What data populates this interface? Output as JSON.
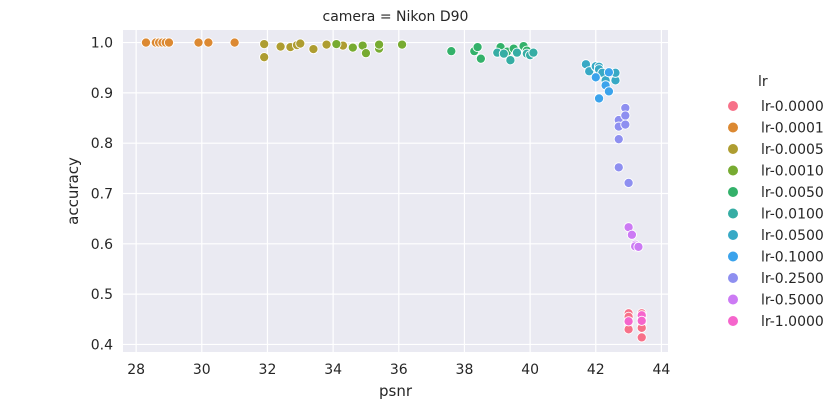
{
  "chart_data": {
    "type": "scatter",
    "title": "camera = Nikon D90",
    "xlabel": "psnr",
    "ylabel": "accuracy",
    "xlim": [
      27.6,
      44.2
    ],
    "ylim": [
      0.385,
      1.025
    ],
    "xticks": [
      28,
      30,
      32,
      34,
      36,
      38,
      40,
      42,
      44
    ],
    "yticks": [
      0.4,
      0.5,
      0.6,
      0.7,
      0.8,
      0.9,
      1.0
    ],
    "grid": true,
    "legend_title": "lr",
    "legend_position": "right",
    "series": [
      {
        "name": "lr-0.0000",
        "color": "#f77189",
        "points": [
          [
            43.0,
            0.462
          ],
          [
            43.0,
            0.455
          ],
          [
            43.0,
            0.443
          ],
          [
            43.0,
            0.43
          ],
          [
            43.4,
            0.462
          ],
          [
            43.4,
            0.452
          ],
          [
            43.4,
            0.443
          ],
          [
            43.4,
            0.433
          ],
          [
            43.4,
            0.414
          ]
        ]
      },
      {
        "name": "lr-0.0001",
        "color": "#dc8932",
        "points": [
          [
            28.3,
            1.0
          ],
          [
            28.6,
            1.0
          ],
          [
            28.7,
            1.0
          ],
          [
            28.8,
            1.0
          ],
          [
            28.9,
            1.0
          ],
          [
            29.0,
            1.0
          ],
          [
            29.9,
            1.0
          ],
          [
            30.2,
            1.0
          ],
          [
            31.0,
            1.0
          ]
        ]
      },
      {
        "name": "lr-0.0005",
        "color": "#ae9d31",
        "points": [
          [
            31.9,
            0.997
          ],
          [
            31.9,
            0.971
          ],
          [
            32.4,
            0.992
          ],
          [
            32.7,
            0.991
          ],
          [
            32.9,
            0.995
          ],
          [
            33.0,
            0.998
          ],
          [
            33.4,
            0.987
          ],
          [
            33.8,
            0.996
          ],
          [
            34.3,
            0.994
          ]
        ]
      },
      {
        "name": "lr-0.0010",
        "color": "#77ab31",
        "points": [
          [
            34.1,
            0.997
          ],
          [
            34.6,
            0.99
          ],
          [
            34.9,
            0.994
          ],
          [
            35.0,
            0.979
          ],
          [
            35.4,
            0.988
          ],
          [
            35.4,
            0.996
          ],
          [
            36.1,
            0.996
          ]
        ]
      },
      {
        "name": "lr-0.0050",
        "color": "#33b16a",
        "points": [
          [
            37.6,
            0.983
          ],
          [
            38.3,
            0.983
          ],
          [
            38.4,
            0.991
          ],
          [
            38.5,
            0.968
          ],
          [
            39.1,
            0.991
          ],
          [
            39.3,
            0.982
          ],
          [
            39.5,
            0.988
          ],
          [
            39.8,
            0.993
          ],
          [
            39.9,
            0.984
          ]
        ]
      },
      {
        "name": "lr-0.0100",
        "color": "#36ada4",
        "points": [
          [
            39.0,
            0.98
          ],
          [
            39.2,
            0.978
          ],
          [
            39.4,
            0.965
          ],
          [
            39.6,
            0.98
          ],
          [
            39.9,
            0.978
          ],
          [
            40.0,
            0.975
          ],
          [
            40.1,
            0.98
          ]
        ]
      },
      {
        "name": "lr-0.0500",
        "color": "#38a9c5",
        "points": [
          [
            41.7,
            0.957
          ],
          [
            41.8,
            0.943
          ],
          [
            42.0,
            0.952
          ],
          [
            42.0,
            0.953
          ],
          [
            42.1,
            0.952
          ],
          [
            42.1,
            0.947
          ],
          [
            42.2,
            0.94
          ],
          [
            42.3,
            0.925
          ],
          [
            42.6,
            0.925
          ],
          [
            42.6,
            0.94
          ]
        ]
      },
      {
        "name": "lr-0.1000",
        "color": "#3ba3ec",
        "points": [
          [
            42.0,
            0.931
          ],
          [
            42.1,
            0.889
          ],
          [
            42.3,
            0.915
          ],
          [
            42.4,
            0.941
          ],
          [
            42.4,
            0.903
          ]
        ]
      },
      {
        "name": "lr-0.2500",
        "color": "#8e8ff0",
        "points": [
          [
            42.7,
            0.846
          ],
          [
            42.7,
            0.833
          ],
          [
            42.7,
            0.808
          ],
          [
            42.7,
            0.752
          ],
          [
            42.9,
            0.87
          ],
          [
            42.9,
            0.855
          ],
          [
            42.9,
            0.837
          ],
          [
            43.0,
            0.721
          ]
        ]
      },
      {
        "name": "lr-0.5000",
        "color": "#cc7af4",
        "points": [
          [
            43.0,
            0.633
          ],
          [
            43.1,
            0.618
          ],
          [
            43.2,
            0.598
          ],
          [
            43.2,
            0.595
          ],
          [
            43.3,
            0.594
          ]
        ]
      },
      {
        "name": "lr-1.0000",
        "color": "#f565cc",
        "points": [
          [
            43.4,
            0.458
          ],
          [
            43.0,
            0.446
          ],
          [
            43.4,
            0.447
          ]
        ]
      }
    ]
  }
}
